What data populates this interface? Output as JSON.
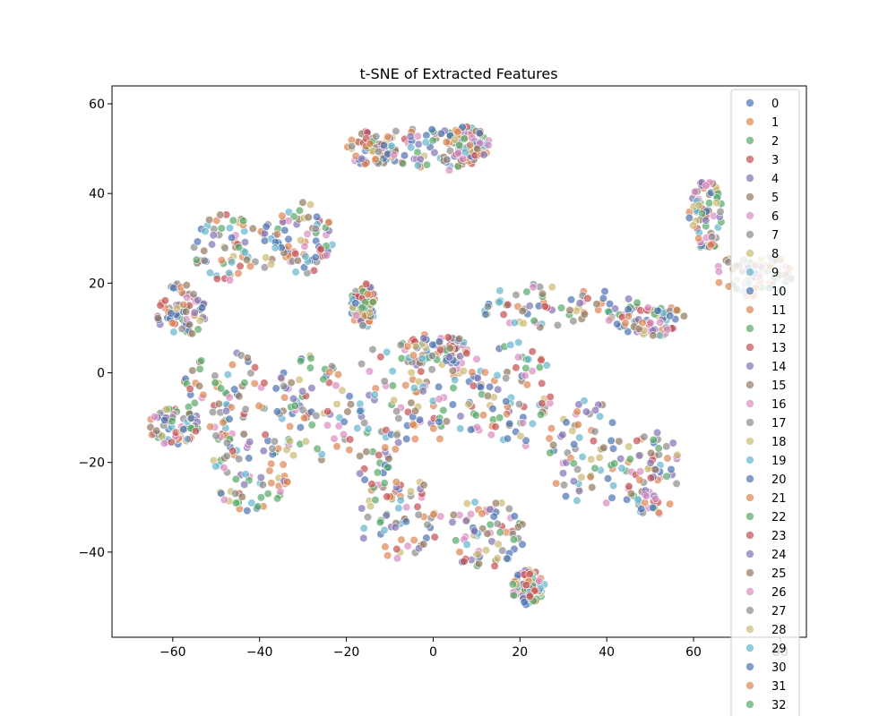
{
  "chart_data": {
    "type": "scatter",
    "title": "t-SNE of Extracted Features",
    "xlabel": "",
    "ylabel": "",
    "xlim": [
      -74,
      86
    ],
    "ylim": [
      -59,
      64
    ],
    "x_ticks": [
      -60,
      -40,
      -20,
      0,
      20,
      40,
      60,
      80
    ],
    "y_ticks": [
      -40,
      -20,
      0,
      20,
      40,
      60
    ],
    "x_tick_labels": [
      "−60",
      "−40",
      "−20",
      "0",
      "20",
      "40",
      "60",
      "80"
    ],
    "y_tick_labels": [
      "−40",
      "−20",
      "0",
      "20",
      "40",
      "60"
    ],
    "grid": false,
    "legend_position": "right",
    "marker_alpha": 0.7,
    "palette": [
      "#4c72b0",
      "#dd8452",
      "#55a868",
      "#c44e52",
      "#8172b3",
      "#937860",
      "#da8bc3",
      "#8c8c8c",
      "#ccb974",
      "#64b5cd"
    ],
    "series": [
      {
        "name": "0",
        "color": "#4c72b0"
      },
      {
        "name": "1",
        "color": "#dd8452"
      },
      {
        "name": "2",
        "color": "#55a868"
      },
      {
        "name": "3",
        "color": "#c44e52"
      },
      {
        "name": "4",
        "color": "#8172b3"
      },
      {
        "name": "5",
        "color": "#937860"
      },
      {
        "name": "6",
        "color": "#da8bc3"
      },
      {
        "name": "7",
        "color": "#8c8c8c"
      },
      {
        "name": "8",
        "color": "#ccb974"
      },
      {
        "name": "9",
        "color": "#64b5cd"
      },
      {
        "name": "10",
        "color": "#4c72b0"
      },
      {
        "name": "11",
        "color": "#dd8452"
      },
      {
        "name": "12",
        "color": "#55a868"
      },
      {
        "name": "13",
        "color": "#c44e52"
      },
      {
        "name": "14",
        "color": "#8172b3"
      },
      {
        "name": "15",
        "color": "#937860"
      },
      {
        "name": "16",
        "color": "#da8bc3"
      },
      {
        "name": "17",
        "color": "#8c8c8c"
      },
      {
        "name": "18",
        "color": "#ccb974"
      },
      {
        "name": "19",
        "color": "#64b5cd"
      },
      {
        "name": "20",
        "color": "#4c72b0"
      },
      {
        "name": "21",
        "color": "#dd8452"
      },
      {
        "name": "22",
        "color": "#55a868"
      },
      {
        "name": "23",
        "color": "#c44e52"
      },
      {
        "name": "24",
        "color": "#8172b3"
      },
      {
        "name": "25",
        "color": "#937860"
      },
      {
        "name": "26",
        "color": "#da8bc3"
      },
      {
        "name": "27",
        "color": "#8c8c8c"
      },
      {
        "name": "28",
        "color": "#ccb974"
      },
      {
        "name": "29",
        "color": "#64b5cd"
      },
      {
        "name": "30",
        "color": "#4c72b0"
      },
      {
        "name": "31",
        "color": "#dd8452"
      },
      {
        "name": "32",
        "color": "#55a868"
      }
    ],
    "clusters": [
      {
        "cx": 0,
        "cy": 50,
        "rx": 14,
        "ry": 5
      },
      {
        "cx": -14,
        "cy": 50,
        "rx": 6,
        "ry": 4
      },
      {
        "cx": 8,
        "cy": 51,
        "rx": 5,
        "ry": 4
      },
      {
        "cx": -46,
        "cy": 28,
        "rx": 11,
        "ry": 8
      },
      {
        "cx": -30,
        "cy": 30,
        "rx": 7,
        "ry": 8
      },
      {
        "cx": -58,
        "cy": 14,
        "rx": 6,
        "ry": 6
      },
      {
        "cx": 63,
        "cy": 35,
        "rx": 4,
        "ry": 8
      },
      {
        "cx": 74,
        "cy": 22,
        "rx": 9,
        "ry": 5
      },
      {
        "cx": 28,
        "cy": 15,
        "rx": 18,
        "ry": 5
      },
      {
        "cx": 50,
        "cy": 12,
        "rx": 8,
        "ry": 4
      },
      {
        "cx": -48,
        "cy": -5,
        "rx": 10,
        "ry": 10
      },
      {
        "cx": -60,
        "cy": -12,
        "rx": 6,
        "ry": 4
      },
      {
        "cx": -42,
        "cy": -22,
        "rx": 9,
        "ry": 9
      },
      {
        "cx": -28,
        "cy": -8,
        "rx": 9,
        "ry": 12
      },
      {
        "cx": -12,
        "cy": -10,
        "rx": 9,
        "ry": 16
      },
      {
        "cx": 3,
        "cy": -5,
        "rx": 10,
        "ry": 12
      },
      {
        "cx": 18,
        "cy": -5,
        "rx": 10,
        "ry": 12
      },
      {
        "cx": 36,
        "cy": -18,
        "rx": 10,
        "ry": 12
      },
      {
        "cx": 50,
        "cy": -22,
        "rx": 7,
        "ry": 10
      },
      {
        "cx": -8,
        "cy": -32,
        "rx": 10,
        "ry": 10
      },
      {
        "cx": 12,
        "cy": -36,
        "rx": 9,
        "ry": 8
      },
      {
        "cx": 22,
        "cy": -48,
        "rx": 4,
        "ry": 4
      },
      {
        "cx": 0,
        "cy": 5,
        "rx": 8,
        "ry": 4
      },
      {
        "cx": -16,
        "cy": 15,
        "rx": 3,
        "ry": 5
      }
    ]
  }
}
